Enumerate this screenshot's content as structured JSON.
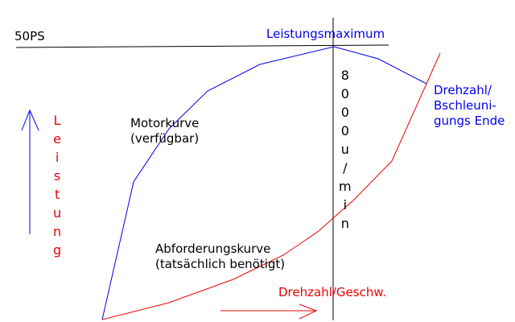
{
  "labels": {
    "power_value": "50PS",
    "max_power": "Leistungsmaximum",
    "speed_end": "Drehzahl/\nBschleuni-\ngungs Ende",
    "engine_curve": "Motorkurve\n(verfügbar)",
    "demand_curve": "Abforderungskurve\n(tatsächlich benötigt)",
    "speed_axis": "Drehzahl/Geschw.",
    "power_axis_vertical": "Leistung",
    "rpm_vertical": "8000u/min"
  },
  "colors": {
    "black": "#000000",
    "blue": "#0000ee",
    "red": "#ee0000"
  }
}
